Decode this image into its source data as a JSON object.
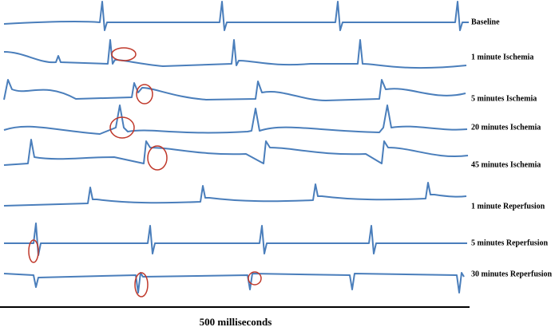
{
  "traces": [
    {
      "label": "Baseline"
    },
    {
      "label": "1 minute Ischemia"
    },
    {
      "label": "5 minutes Ischemia"
    },
    {
      "label": "20 minutes Ischemia"
    },
    {
      "label": "45 minutes Ischemia"
    },
    {
      "label": "1 minute Reperfusion"
    },
    {
      "label": "5 minutes Reperfusion"
    },
    {
      "label": "30 minutes Reperfusion"
    }
  ],
  "scale_bar": {
    "label": "500 milliseconds"
  }
}
